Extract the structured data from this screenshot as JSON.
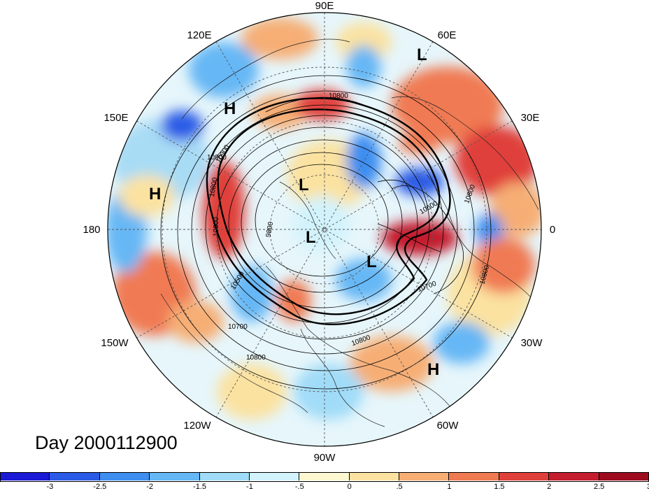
{
  "title": "Day 2000112900",
  "longitude_labels": {
    "e90": "90E",
    "e120": "120E",
    "e60": "60E",
    "e150": "150E",
    "e30": "30E",
    "d180": "180",
    "d0": "0",
    "w150": "150W",
    "w30": "30W",
    "w120": "120W",
    "w60": "60W",
    "w90": "90W"
  },
  "pressure_centers": [
    "H",
    "H",
    "L",
    "L",
    "L",
    "L",
    "H"
  ],
  "contour_labels": [
    "10800",
    "10900",
    "10800",
    "10800",
    "9800",
    "10500",
    "10700",
    "10800",
    "10800",
    "10600",
    "10800",
    "10700",
    "10800",
    "10900"
  ],
  "colorbar": {
    "colors": [
      "#1a1ad6",
      "#2b5be6",
      "#3e8ef0",
      "#66b7f5",
      "#a0dcf8",
      "#d2f3fc",
      "#fdf8d0",
      "#fbe2a0",
      "#f6ae74",
      "#f07a52",
      "#e0403a",
      "#c41e2e",
      "#9c0c1e"
    ],
    "tick_labels": [
      "-3",
      "-2.5",
      "-2",
      "-1.5",
      "-1",
      "-.5",
      "0",
      ".5",
      "1",
      "1.5",
      "2",
      "2.5",
      "3"
    ]
  }
}
